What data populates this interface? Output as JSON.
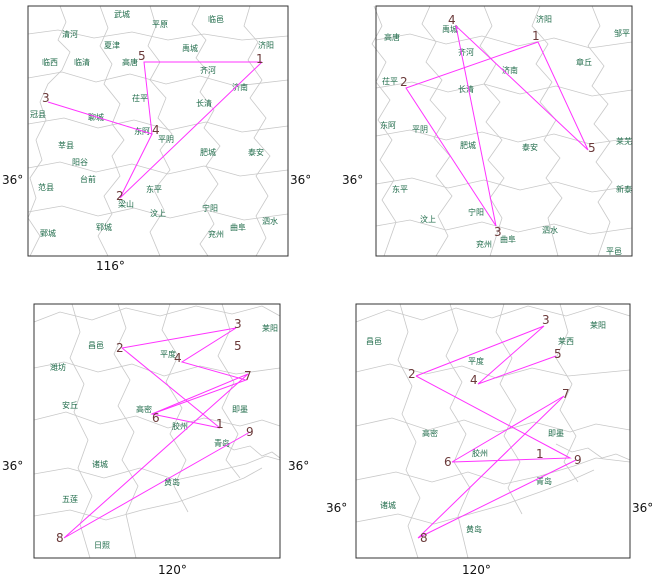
{
  "colors": {
    "route": "#ff33ff",
    "place": "#1f6b4a",
    "number": "#6b3a3a",
    "border": "#c8c8c8",
    "frame": "#333333"
  },
  "maps": [
    {
      "id": "top-left",
      "places": [
        "武城",
        "平原",
        "临邑",
        "清河",
        "夏津",
        "禹城",
        "济阳",
        "临西",
        "临清",
        "高唐",
        "齐河",
        "济南",
        "冠县",
        "茌平",
        "长清",
        "聊城",
        "东阿",
        "平阴",
        "莘县",
        "阳谷",
        "肥城",
        "泰安",
        "台前",
        "范县",
        "梁山",
        "东平",
        "汶上",
        "宁阳",
        "泗水",
        "鄄城",
        "郓城",
        "兖州",
        "曲阜"
      ],
      "stops": [
        "1",
        "2",
        "3",
        "4",
        "5"
      ],
      "axis_labels": {
        "x": "116°",
        "left": "36°",
        "right": "36°"
      }
    },
    {
      "id": "top-right",
      "places": [
        "禹城",
        "济阳",
        "邹平",
        "高唐",
        "齐河",
        "济南",
        "章丘",
        "茌平",
        "长清",
        "东阿",
        "平阴",
        "肥城",
        "泰安",
        "莱芜",
        "新泰",
        "东平",
        "汶上",
        "宁阳",
        "泗水",
        "兖州",
        "曲阜",
        "平邑"
      ],
      "stops": [
        "1",
        "2",
        "3",
        "4",
        "5"
      ],
      "axis_labels": {
        "left": "36°"
      }
    },
    {
      "id": "bottom-left",
      "places": [
        "莱阳",
        "昌邑",
        "平度",
        "潍坊",
        "安丘",
        "高密",
        "即墨",
        "胶州",
        "青岛",
        "诸城",
        "黄岛",
        "五莲",
        "日照"
      ],
      "stops": [
        "1",
        "2",
        "3",
        "4",
        "5",
        "6",
        "7",
        "8",
        "9"
      ],
      "axis_labels": {
        "x": "120°",
        "left": "36°",
        "right": "36°"
      }
    },
    {
      "id": "bottom-right",
      "places": [
        "莱阳",
        "昌邑",
        "莱西",
        "平度",
        "高密",
        "即墨",
        "胶州",
        "青岛",
        "诸城",
        "黄岛"
      ],
      "stops": [
        "1",
        "2",
        "3",
        "4",
        "5",
        "6",
        "7",
        "8",
        "9"
      ],
      "axis_labels": {
        "x": "120°",
        "left": "36°",
        "right": "36°"
      }
    }
  ]
}
